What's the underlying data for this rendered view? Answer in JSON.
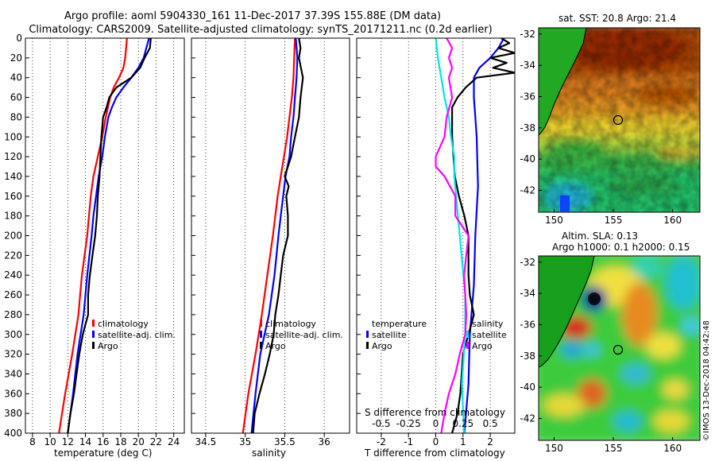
{
  "header": {
    "line1": "Argo profile: aoml 5904330_161 11-Dec-2017 37.39S 155.88E (DM data)",
    "line2": "Climatology: CARS2009. Satellite-adjusted climatology: synTS_20171211.nc (0.2d earlier)"
  },
  "colors": {
    "climatology": "#ff0000",
    "satellite": "#0000ff",
    "argo": "#000000",
    "t_diff": "#00e5e5",
    "s_diff": "#ff00ff"
  },
  "chart_data": [
    {
      "type": "line",
      "name": "temperature-panel",
      "xlabel": "temperature (deg C)",
      "ylabel": "",
      "xlim": [
        7.2,
        25.2
      ],
      "ylim": [
        400,
        0
      ],
      "xticks": [
        8,
        10,
        12,
        14,
        16,
        18,
        20,
        22,
        24
      ],
      "yticks": [
        0,
        20,
        40,
        60,
        80,
        100,
        120,
        140,
        160,
        180,
        200,
        220,
        240,
        260,
        280,
        300,
        320,
        340,
        360,
        380,
        400
      ],
      "legend": [
        "climatology",
        "satellite-adj. clim.",
        "Argo"
      ],
      "series": [
        {
          "name": "climatology",
          "color": "#ff0000",
          "depth": [
            0,
            10,
            20,
            30,
            40,
            50,
            60,
            80,
            100,
            120,
            140,
            160,
            180,
            200,
            240,
            280,
            320,
            360,
            400
          ],
          "values": [
            18.7,
            18.6,
            18.5,
            18.3,
            17.8,
            17.2,
            16.8,
            16.3,
            15.9,
            15.4,
            14.9,
            14.6,
            14.4,
            14.2,
            13.6,
            13.2,
            12.5,
            11.7,
            11.0
          ]
        },
        {
          "name": "satellite-adj. clim.",
          "color": "#0000ff",
          "depth": [
            0,
            10,
            20,
            30,
            40,
            50,
            60,
            70,
            80,
            100,
            120,
            140,
            160,
            180,
            200,
            240,
            280,
            320,
            360,
            400
          ],
          "values": [
            21.2,
            20.9,
            20.6,
            20.0,
            19.2,
            18.3,
            17.5,
            17.0,
            16.6,
            16.2,
            15.9,
            15.5,
            15.2,
            14.9,
            14.7,
            14.2,
            13.8,
            13.1,
            12.6,
            12.0
          ]
        },
        {
          "name": "Argo",
          "color": "#000000",
          "depth": [
            0,
            10,
            20,
            30,
            40,
            50,
            60,
            70,
            80,
            100,
            120,
            140,
            160,
            180,
            200,
            220,
            240,
            260,
            280,
            300,
            320,
            340,
            360,
            380,
            400
          ],
          "values": [
            21.4,
            21.3,
            20.7,
            20.2,
            19.2,
            17.5,
            16.7,
            16.4,
            16.0,
            15.8,
            15.7,
            15.6,
            15.4,
            15.3,
            15.1,
            14.8,
            14.5,
            14.3,
            14.3,
            13.7,
            13.3,
            13.0,
            12.7,
            12.3,
            12.0
          ]
        }
      ]
    },
    {
      "type": "line",
      "name": "salinity-panel",
      "xlabel": "salinity",
      "ylabel": "",
      "xlim": [
        34.32,
        36.32
      ],
      "ylim": [
        400,
        0
      ],
      "xticks": [
        34.5,
        35,
        35.5,
        36
      ],
      "legend": [
        "climatology",
        "satellite-adj. clim.",
        "Argo"
      ],
      "series": [
        {
          "name": "climatology",
          "color": "#ff0000",
          "depth": [
            0,
            20,
            40,
            60,
            80,
            100,
            120,
            140,
            160,
            180,
            200,
            240,
            280,
            320,
            360,
            400
          ],
          "values": [
            35.63,
            35.62,
            35.61,
            35.59,
            35.56,
            35.53,
            35.49,
            35.45,
            35.41,
            35.38,
            35.35,
            35.28,
            35.21,
            35.13,
            35.04,
            34.97
          ]
        },
        {
          "name": "satellite-adj. clim.",
          "color": "#0000ff",
          "depth": [
            0,
            10,
            20,
            40,
            60,
            80,
            100,
            120,
            140,
            160,
            180,
            200,
            240,
            280,
            320,
            360,
            400
          ],
          "values": [
            35.64,
            35.65,
            35.66,
            35.65,
            35.63,
            35.61,
            35.58,
            35.56,
            35.51,
            35.48,
            35.45,
            35.42,
            35.37,
            35.3,
            35.19,
            35.13,
            35.08
          ]
        },
        {
          "name": "Argo",
          "color": "#000000",
          "depth": [
            0,
            10,
            20,
            40,
            60,
            80,
            100,
            120,
            140,
            150,
            160,
            180,
            200,
            220,
            240,
            260,
            280,
            300,
            320,
            340,
            360,
            380,
            400
          ],
          "values": [
            35.68,
            35.7,
            35.68,
            35.73,
            35.7,
            35.68,
            35.63,
            35.58,
            35.5,
            35.55,
            35.52,
            35.54,
            35.54,
            35.48,
            35.45,
            35.42,
            35.38,
            35.36,
            35.31,
            35.25,
            35.18,
            35.12,
            35.1
          ]
        }
      ]
    },
    {
      "type": "line",
      "name": "difference-panel",
      "xlabel": "T difference from climatology",
      "ylabel": "",
      "xlim": [
        -2.9,
        2.9
      ],
      "ylim": [
        400,
        0
      ],
      "xticks": [
        -2,
        -1,
        0,
        1,
        2
      ],
      "top_axis_label": "S difference from climatology",
      "top_ticks": [
        -0.5,
        -0.25,
        0,
        0.25,
        0.5
      ],
      "legend_left": [
        "temperature",
        "satellite",
        "Argo"
      ],
      "legend_right": [
        "salinity",
        "satellite",
        "Argo"
      ],
      "series": [
        {
          "name": "T satellite-adj",
          "color": "#0000ff",
          "depth": [
            0,
            10,
            20,
            30,
            40,
            60,
            80,
            100,
            150,
            200,
            250,
            300,
            350,
            400
          ],
          "values": [
            2.5,
            2.3,
            2.0,
            1.6,
            1.4,
            1.4,
            1.45,
            1.5,
            1.55,
            1.45,
            1.4,
            1.25,
            1.2,
            1.05
          ]
        },
        {
          "name": "T Argo",
          "color": "#000000",
          "depth": [
            0,
            5,
            10,
            15,
            20,
            25,
            30,
            35,
            40,
            50,
            60,
            70,
            80,
            100,
            120,
            140,
            160,
            180,
            200,
            220,
            240,
            260,
            280,
            300,
            320,
            340,
            360,
            380,
            400
          ],
          "values": [
            2.4,
            2.7,
            2.3,
            2.9,
            2.0,
            2.6,
            2.1,
            2.9,
            1.5,
            1.1,
            0.8,
            0.6,
            0.6,
            0.6,
            0.65,
            0.7,
            0.85,
            1.05,
            1.2,
            1.2,
            1.2,
            1.25,
            1.4,
            1.2,
            1.0,
            0.95,
            0.9,
            0.8,
            0.6
          ]
        },
        {
          "name": "S satellite-adj",
          "color": "#00e5e5",
          "depth": [
            0,
            20,
            40,
            60,
            80,
            100,
            120,
            140,
            200,
            260,
            300,
            350,
            400
          ],
          "values": [
            0.0,
            0.02,
            0.05,
            0.08,
            0.12,
            0.14,
            0.17,
            0.17,
            0.22,
            0.27,
            0.27,
            0.24,
            0.26
          ]
        },
        {
          "name": "S Argo",
          "color": "#ff00ff",
          "depth": [
            0,
            10,
            20,
            30,
            40,
            60,
            80,
            100,
            120,
            130,
            140,
            160,
            180,
            200,
            220,
            240,
            260,
            280,
            300,
            320,
            340,
            360,
            380,
            400
          ],
          "values": [
            0.1,
            0.15,
            0.12,
            0.15,
            0.12,
            0.15,
            0.1,
            0.08,
            0.0,
            0.0,
            0.08,
            0.18,
            0.18,
            0.3,
            0.28,
            0.26,
            0.27,
            0.28,
            0.27,
            0.22,
            0.18,
            0.12,
            0.08,
            0.05
          ]
        }
      ]
    },
    {
      "type": "heatmap",
      "name": "sst-map",
      "title": "sat. SST: 20.8 Argo: 21.4",
      "xticks": [
        150,
        155,
        160
      ],
      "yticks": [
        -32,
        -34,
        -36,
        -38,
        -40,
        -42
      ],
      "float_position": [
        155.88,
        -37.39
      ]
    },
    {
      "type": "heatmap",
      "name": "sla-map",
      "title": "Altim. SLA: 0.13",
      "subtitle": "Argo h1000: 0.1 h2000: 0.15",
      "xticks": [
        150,
        155,
        160
      ],
      "yticks": [
        -32,
        -34,
        -36,
        -38,
        -40,
        -42
      ],
      "float_position": [
        155.88,
        -37.39
      ]
    }
  ],
  "watermark": "©IMOS 13-Dec-2018 04:42:48"
}
